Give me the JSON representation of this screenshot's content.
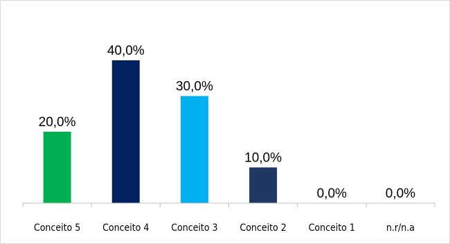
{
  "chart_data": {
    "type": "bar",
    "title": "",
    "xlabel": "",
    "ylabel": "",
    "categories": [
      "Conceito 5",
      "Conceito 4",
      "Conceito 3",
      "Conceito 2",
      "Conceito 1",
      "n.r/n.a"
    ],
    "values": [
      20.0,
      40.0,
      30.0,
      10.0,
      0.0,
      0.0
    ],
    "value_labels": [
      "20,0%",
      "40,0%",
      "30,0%",
      "10,0%",
      "0,0%",
      "0,0%"
    ],
    "colors": [
      "#00b050",
      "#002060",
      "#00b0f0",
      "#1f3864",
      "#000000",
      "#000000"
    ],
    "ylim": [
      0,
      40
    ],
    "grid": false,
    "legend": "none"
  }
}
